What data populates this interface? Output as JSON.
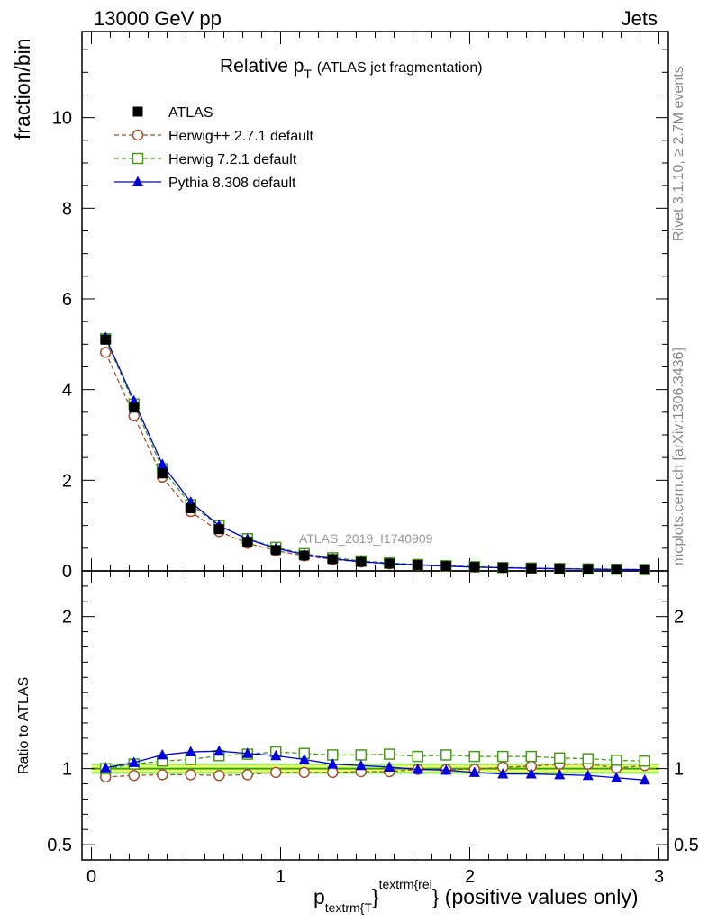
{
  "header": {
    "left": "13000 GeV pp",
    "right": "Jets"
  },
  "side_text": {
    "top": "Rivet 3.1.10, ≥ 2.7M events",
    "bottom": "mcplots.cern.ch [arXiv:1306.3436]"
  },
  "watermark": "ATLAS_2019_I1740909",
  "title": {
    "main": "Relative p",
    "sub": "T",
    "paren": "(ATLAS jet fragmentation)"
  },
  "xlabel": {
    "p": "p",
    "sub": "textrm{T",
    "brace": "}",
    "sup": "textrm{rel",
    "rest": "} (positive values only)"
  },
  "colors": {
    "atlas": "#000000",
    "herwigpp": "#a0522d",
    "herwig7": "#4a9a1a",
    "pythia": "#0000dd",
    "band_inner": "#ffff66",
    "band_outer": "#99ee77"
  },
  "chart_data": [
    {
      "type": "line",
      "panel": "main",
      "ylabel": "fraction/bin",
      "xlim": [
        -0.05,
        3.05
      ],
      "ylim": [
        0,
        11.9
      ],
      "y_ticks": [
        0,
        2,
        4,
        6,
        8,
        10
      ],
      "x": [
        0.075,
        0.225,
        0.375,
        0.525,
        0.675,
        0.825,
        0.975,
        1.125,
        1.275,
        1.425,
        1.575,
        1.725,
        1.875,
        2.025,
        2.175,
        2.325,
        2.475,
        2.625,
        2.775,
        2.925
      ],
      "series": [
        {
          "name": "ATLAS",
          "marker": "square-filled",
          "values": [
            5.1,
            3.6,
            2.15,
            1.38,
            0.92,
            0.64,
            0.46,
            0.34,
            0.26,
            0.2,
            0.16,
            0.13,
            0.105,
            0.085,
            0.07,
            0.058,
            0.048,
            0.04,
            0.034,
            0.028
          ]
        },
        {
          "name": "Herwig++ 2.7.1 default",
          "marker": "circle-open",
          "style": "dashed",
          "values": [
            4.82,
            3.42,
            2.07,
            1.31,
            0.87,
            0.61,
            0.45,
            0.33,
            0.255,
            0.196,
            0.157,
            0.13,
            0.105,
            0.085,
            0.071,
            0.059,
            0.05,
            0.041,
            0.034,
            0.029
          ]
        },
        {
          "name": "Herwig 7.2.1 default",
          "marker": "square-open",
          "style": "dashed",
          "values": [
            5.12,
            3.68,
            2.25,
            1.46,
            1.0,
            0.71,
            0.52,
            0.38,
            0.29,
            0.22,
            0.175,
            0.141,
            0.113,
            0.092,
            0.076,
            0.063,
            0.052,
            0.043,
            0.036,
            0.03
          ]
        },
        {
          "name": "Pythia 8.308 default",
          "marker": "triangle-filled",
          "style": "solid",
          "values": [
            5.15,
            3.75,
            2.35,
            1.52,
            1.0,
            0.7,
            0.5,
            0.36,
            0.265,
            0.204,
            0.161,
            0.13,
            0.104,
            0.083,
            0.068,
            0.056,
            0.046,
            0.038,
            0.032,
            0.026
          ]
        }
      ],
      "legend_position": "top-left",
      "annotation": "ATLAS_2019_I1740909"
    },
    {
      "type": "line",
      "panel": "ratio",
      "ylabel": "Ratio to ATLAS",
      "xlabel": "p_{textrm{T}}^{textrm{rel}} (positive values only)",
      "xlim": [
        -0.05,
        3.05
      ],
      "ylim": [
        0.4,
        2.3
      ],
      "y_ticks": [
        0.5,
        1,
        2
      ],
      "x_ticks": [
        0,
        1,
        2,
        3
      ],
      "x": [
        0.075,
        0.225,
        0.375,
        0.525,
        0.675,
        0.825,
        0.975,
        1.125,
        1.275,
        1.425,
        1.575,
        1.725,
        1.875,
        2.025,
        2.175,
        2.325,
        2.475,
        2.625,
        2.775,
        2.925
      ],
      "band": {
        "inner": 0.02,
        "outer": 0.035
      },
      "series": [
        {
          "name": "Herwig++ 2.7.1 default",
          "values": [
            0.945,
            0.955,
            0.96,
            0.96,
            0.955,
            0.96,
            0.975,
            0.975,
            0.975,
            0.98,
            0.98,
            0.995,
            0.995,
            0.995,
            1.01,
            1.015,
            1.03,
            1.03,
            1.005,
            1.02
          ]
        },
        {
          "name": "Herwig 7.2.1 default",
          "values": [
            1.0,
            1.03,
            1.05,
            1.06,
            1.085,
            1.095,
            1.11,
            1.1,
            1.09,
            1.09,
            1.095,
            1.08,
            1.09,
            1.08,
            1.08,
            1.08,
            1.07,
            1.065,
            1.055,
            1.05
          ]
        },
        {
          "name": "Pythia 8.308 default",
          "values": [
            1.005,
            1.04,
            1.09,
            1.11,
            1.115,
            1.1,
            1.085,
            1.06,
            1.03,
            1.02,
            1.01,
            0.995,
            0.99,
            0.975,
            0.965,
            0.965,
            0.96,
            0.955,
            0.94,
            0.925
          ]
        }
      ]
    }
  ]
}
